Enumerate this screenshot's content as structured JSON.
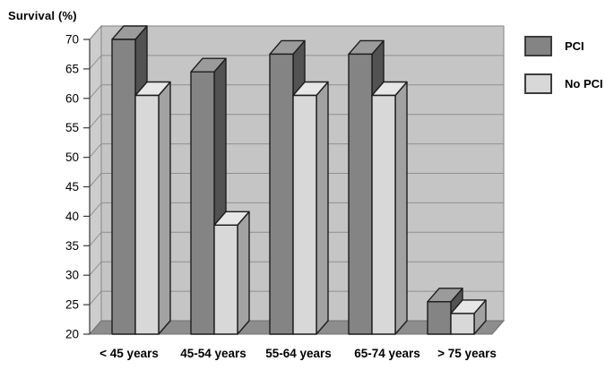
{
  "title": "Survival (%)",
  "chart_data": {
    "type": "bar",
    "style": "3d-clustered",
    "title": "Survival (%)",
    "ylabel": "Survival (%)",
    "xlabel": "",
    "categories": [
      "< 45 years",
      "45-54 years",
      "55-64 years",
      "65-74 years",
      "> 75 years"
    ],
    "series": [
      {
        "name": "PCI",
        "values": [
          70,
          64.5,
          67.5,
          67.5,
          25.5
        ],
        "color": "#848484",
        "color_top": "#9b9b9b",
        "color_side": "#525252"
      },
      {
        "name": "No PCI",
        "values": [
          60.5,
          38.5,
          60.5,
          60.5,
          23.5
        ],
        "color": "#d8d8d8",
        "color_top": "#e7e7e7",
        "color_side": "#a2a2a2"
      }
    ],
    "ylim": [
      20,
      70
    ],
    "ytick_step": 5,
    "yticks": [
      20,
      25,
      30,
      35,
      40,
      45,
      50,
      55,
      60,
      65,
      70
    ],
    "grid": true,
    "legend_position": "top-right"
  },
  "legend": {
    "items": [
      {
        "label": "PCI",
        "color": "#848484"
      },
      {
        "label": "No PCI",
        "color": "#d8d8d8"
      }
    ]
  },
  "colors": {
    "background": "#ffffff",
    "back_wall": "#c5c5c5",
    "left_wall": "#cdcdcd",
    "floor": "#8d8d8d",
    "gridline": "#8f8f8f",
    "wall_edge": "#828282",
    "bar_outline": "#1c1c1c",
    "axis": "#3a3a3a",
    "text": "#000000"
  }
}
